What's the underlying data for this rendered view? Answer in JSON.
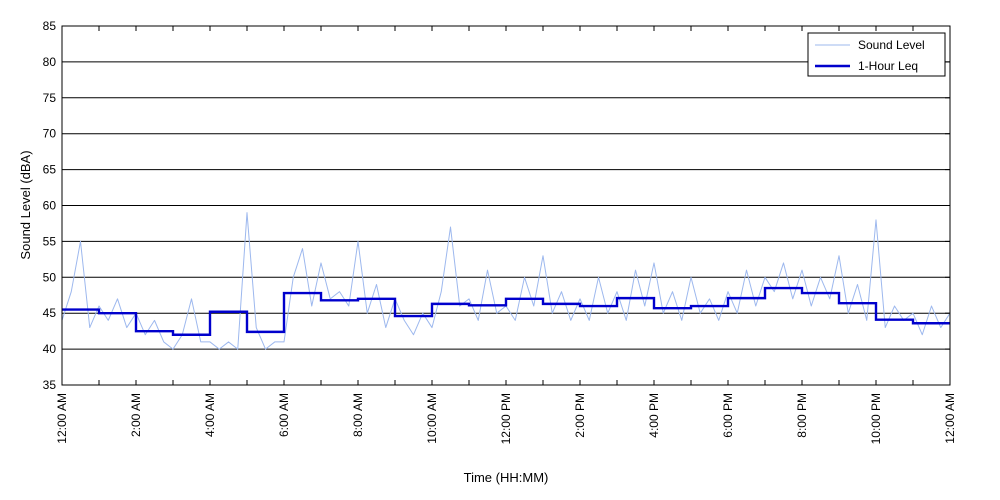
{
  "chart_data": {
    "type": "line",
    "title": "",
    "xlabel": "Time (HH:MM)",
    "ylabel": "Sound Level (dBA)",
    "xlim": [
      "12:00 AM",
      "12:00 AM (next day)"
    ],
    "ylim": [
      35,
      85
    ],
    "y_ticks": [
      35,
      40,
      45,
      50,
      55,
      60,
      65,
      70,
      75,
      80,
      85
    ],
    "x_tick_labels": [
      "12:00 AM",
      "2:00 AM",
      "4:00 AM",
      "6:00 AM",
      "8:00 AM",
      "10:00 AM",
      "12:00 PM",
      "2:00 PM",
      "4:00 PM",
      "6:00 PM",
      "8:00 PM",
      "10:00 PM",
      "12:00 AM"
    ],
    "x_tick_hours": [
      0,
      2,
      4,
      6,
      8,
      10,
      12,
      14,
      16,
      18,
      20,
      22,
      24
    ],
    "grid": "horizontal",
    "legend_position": "top-right",
    "series": [
      {
        "name": "Sound Level",
        "color": "#9db8ee",
        "style": "thin line",
        "hours": [
          0.0,
          0.25,
          0.5,
          0.75,
          1.0,
          1.25,
          1.5,
          1.75,
          2.0,
          2.25,
          2.5,
          2.75,
          3.0,
          3.25,
          3.5,
          3.75,
          4.0,
          4.25,
          4.5,
          4.75,
          5.0,
          5.25,
          5.5,
          5.75,
          6.0,
          6.25,
          6.5,
          6.75,
          7.0,
          7.25,
          7.5,
          7.75,
          8.0,
          8.25,
          8.5,
          8.75,
          9.0,
          9.25,
          9.5,
          9.75,
          10.0,
          10.25,
          10.5,
          10.75,
          11.0,
          11.25,
          11.5,
          11.75,
          12.0,
          12.25,
          12.5,
          12.75,
          13.0,
          13.25,
          13.5,
          13.75,
          14.0,
          14.25,
          14.5,
          14.75,
          15.0,
          15.25,
          15.5,
          15.75,
          16.0,
          16.25,
          16.5,
          16.75,
          17.0,
          17.25,
          17.5,
          17.75,
          18.0,
          18.25,
          18.5,
          18.75,
          19.0,
          19.25,
          19.5,
          19.75,
          20.0,
          20.25,
          20.5,
          20.75,
          21.0,
          21.25,
          21.5,
          21.75,
          22.0,
          22.25,
          22.5,
          22.75,
          23.0,
          23.25,
          23.5,
          23.75,
          24.0
        ],
        "values": [
          44,
          48,
          55,
          43,
          46,
          44,
          47,
          43,
          45,
          42,
          44,
          41,
          40,
          42,
          47,
          41,
          41,
          40,
          41,
          40,
          59,
          43,
          40,
          41,
          41,
          50,
          54,
          46,
          52,
          47,
          48,
          46,
          55,
          45,
          49,
          43,
          47,
          44,
          42,
          45,
          43,
          48,
          57,
          46,
          47,
          44,
          51,
          45,
          46,
          44,
          50,
          46,
          53,
          45,
          48,
          44,
          47,
          44,
          50,
          45,
          48,
          44,
          51,
          46,
          52,
          45,
          48,
          44,
          50,
          45,
          47,
          44,
          48,
          45,
          51,
          46,
          50,
          48,
          52,
          47,
          51,
          46,
          50,
          47,
          53,
          45,
          49,
          44,
          58,
          43,
          46,
          44,
          45,
          42,
          46,
          43,
          45
        ]
      },
      {
        "name": "1-Hour Leq",
        "color": "#0000cc",
        "style": "thick step",
        "hour_starts": [
          0,
          1,
          2,
          3,
          4,
          5,
          6,
          7,
          8,
          9,
          10,
          11,
          12,
          13,
          14,
          15,
          16,
          17,
          18,
          19,
          20,
          21,
          22,
          23
        ],
        "values": [
          45.5,
          45.0,
          42.5,
          42.0,
          45.2,
          42.4,
          47.8,
          46.8,
          47.0,
          44.6,
          46.3,
          46.1,
          47.0,
          46.3,
          46.0,
          47.1,
          45.7,
          46.0,
          47.1,
          48.5,
          47.8,
          46.4,
          44.1,
          43.6
        ]
      }
    ]
  }
}
